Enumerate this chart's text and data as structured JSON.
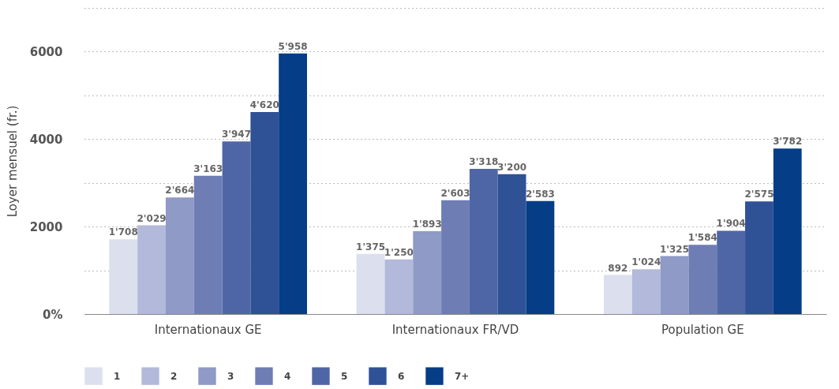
{
  "chart_data": {
    "type": "bar",
    "ylabel": "Loyer mensuel (fr.)",
    "categories": [
      "Internationaux GE",
      "Internationaux FR/VD",
      "Population GE"
    ],
    "series": [
      {
        "name": "1",
        "color": "#dcdfee",
        "values": [
          1708,
          1375,
          892
        ],
        "value_labels": [
          "1'708",
          "1'375",
          "892"
        ]
      },
      {
        "name": "2",
        "color": "#b3b9da",
        "values": [
          2029,
          1250,
          1024
        ],
        "value_labels": [
          "2'029",
          "1'250",
          "1'024"
        ]
      },
      {
        "name": "3",
        "color": "#8f9ac6",
        "values": [
          2664,
          1893,
          1325
        ],
        "value_labels": [
          "2'664",
          "1'893",
          "1'325"
        ]
      },
      {
        "name": "4",
        "color": "#6f7db5",
        "values": [
          3163,
          2603,
          1584
        ],
        "value_labels": [
          "3'163",
          "2'603",
          "1'584"
        ]
      },
      {
        "name": "5",
        "color": "#4f66a6",
        "values": [
          3947,
          3318,
          1904
        ],
        "value_labels": [
          "3'947",
          "3'318",
          "1'904"
        ]
      },
      {
        "name": "6",
        "color": "#2f5196",
        "values": [
          4620,
          3200,
          2575
        ],
        "value_labels": [
          "4'620",
          "3'200",
          "2'575"
        ]
      },
      {
        "name": "7+",
        "color": "#063d87",
        "values": [
          5958,
          2583,
          3782
        ],
        "value_labels": [
          "5'958",
          "2'583",
          "3'782"
        ]
      }
    ],
    "ylim": [
      0,
      7000
    ],
    "yticks": [
      {
        "value": 0,
        "label": "0%"
      },
      {
        "value": 1000,
        "label": null
      },
      2000,
      {
        "value": 3000,
        "label": null
      },
      4000,
      {
        "value": 5000,
        "label": null
      },
      6000,
      {
        "value": 7000,
        "label": null
      }
    ],
    "grid": "y",
    "legend": "bottom"
  }
}
